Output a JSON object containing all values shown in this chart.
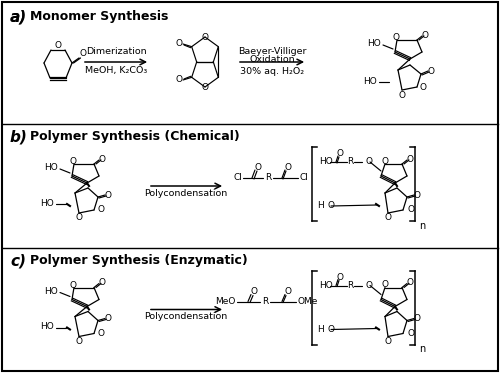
{
  "background_color": "#ffffff",
  "panel_a": {
    "label": "a)",
    "title": "Monomer Synthesis",
    "arrow1_label_top": "Dimerization",
    "arrow1_label_bot": "MeOH, K₂CO₃",
    "arrow2_label_top": "Baeyer-Villiger",
    "arrow2_label_mid": "Oxidation",
    "arrow2_label_bot": "30% aq. H₂O₂"
  },
  "panel_b": {
    "label": "b)",
    "title": "Polymer Synthesis (Chemical)",
    "arrow_label_bot": "Polycondensation"
  },
  "panel_c": {
    "label": "c)",
    "title": "Polymer Synthesis (Enzymatic)",
    "arrow_label_bot": "Polycondensation"
  }
}
